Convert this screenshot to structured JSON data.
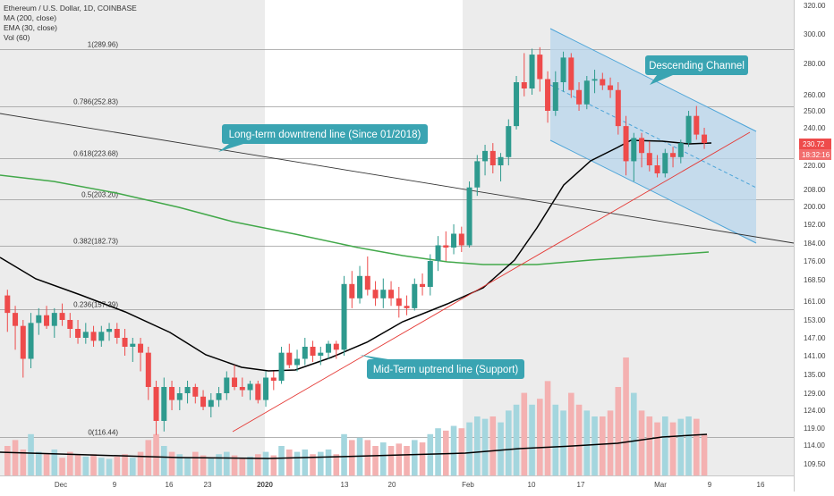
{
  "legend": {
    "symbol_line": "Ethereum / U.S. Dollar, 1D, COINBASE",
    "ma_line": "MA (200, close)",
    "ema_line": "EMA (30, close)",
    "vol_line": "Vol (60)"
  },
  "price_badge": {
    "price": "230.72",
    "countdown": "18:32:16"
  },
  "callouts": {
    "descending": "Descending Channel",
    "downtrend": "Long-term downtrend line (Since 01/2018)",
    "uptrend": "Mid-Term uptrend line (Support)"
  },
  "colors": {
    "up": "#2e9a8e",
    "down": "#ee4b4b",
    "vol_up": "#a4d6de",
    "vol_down": "#f4b1b1",
    "ma200": "#42a84a",
    "ema30": "#000000",
    "channel_fill": "#b8d5ec",
    "channel_line": "#4aa3d8",
    "callout_bg": "#3aa4b2",
    "badge": "#ee4b4b"
  },
  "chart_data": {
    "type": "candlestick",
    "x_ticks": [
      "Dec",
      "9",
      "16",
      "23",
      "2020",
      "13",
      "20",
      "Feb",
      "10",
      "17",
      "Mar",
      "9",
      "16"
    ],
    "y_ticks": [
      109.5,
      114,
      119,
      124,
      129,
      135,
      141,
      147,
      153,
      161,
      168.5,
      176,
      184,
      192,
      200,
      208,
      220,
      230,
      240,
      250,
      260,
      280,
      300,
      320
    ],
    "fib_levels": [
      {
        "label": "1(289.96)",
        "value": 289.96
      },
      {
        "label": "0.786(252.83)",
        "value": 252.83
      },
      {
        "label": "0.618(223.68)",
        "value": 223.68
      },
      {
        "label": "0.5(203.20)",
        "value": 203.2
      },
      {
        "label": "0.382(182.73)",
        "value": 182.73
      },
      {
        "label": "0.236(157.39)",
        "value": 157.39
      },
      {
        "label": "0(116.44)",
        "value": 116.44
      }
    ],
    "candles": [
      [
        163,
        165,
        149,
        156
      ],
      [
        156,
        159,
        143,
        151
      ],
      [
        151,
        153,
        134,
        140
      ],
      [
        140,
        156,
        137,
        152
      ],
      [
        152,
        158,
        148,
        155
      ],
      [
        155,
        159,
        150,
        151
      ],
      [
        151,
        158,
        147,
        156
      ],
      [
        156,
        160,
        151,
        153
      ],
      [
        153,
        156,
        147,
        150
      ],
      [
        150,
        153,
        145,
        147
      ],
      [
        147,
        152,
        145,
        149
      ],
      [
        149,
        151,
        144,
        146
      ],
      [
        146,
        151,
        144,
        149
      ],
      [
        149,
        152,
        146,
        150
      ],
      [
        150,
        152,
        145,
        147
      ],
      [
        147,
        150,
        141,
        144
      ],
      [
        144,
        147,
        139,
        145
      ],
      [
        145,
        147,
        136,
        142
      ],
      [
        142,
        144,
        127,
        131
      ],
      [
        131,
        133,
        117,
        121
      ],
      [
        121,
        134,
        118,
        131
      ],
      [
        131,
        133,
        124,
        127
      ],
      [
        127,
        131,
        124,
        129
      ],
      [
        129,
        133,
        126,
        131
      ],
      [
        131,
        132,
        126,
        128
      ],
      [
        128,
        130,
        124,
        125
      ],
      [
        125,
        129,
        122,
        127
      ],
      [
        127,
        131,
        125,
        129
      ],
      [
        129,
        136,
        127,
        134
      ],
      [
        134,
        138,
        130,
        131
      ],
      [
        131,
        134,
        128,
        130
      ],
      [
        130,
        133,
        127,
        132
      ],
      [
        132,
        133,
        126,
        127
      ],
      [
        127,
        136,
        125,
        134
      ],
      [
        134,
        136,
        130,
        133
      ],
      [
        133,
        144,
        132,
        142
      ],
      [
        142,
        145,
        137,
        138
      ],
      [
        138,
        143,
        136,
        140
      ],
      [
        140,
        147,
        138,
        144
      ],
      [
        144,
        146,
        139,
        141
      ],
      [
        141,
        144,
        138,
        142
      ],
      [
        142,
        146,
        140,
        145
      ],
      [
        145,
        146,
        140,
        143
      ],
      [
        143,
        170,
        141,
        167
      ],
      [
        167,
        172,
        158,
        162
      ],
      [
        162,
        174,
        160,
        170
      ],
      [
        170,
        178,
        163,
        165
      ],
      [
        165,
        168,
        159,
        162
      ],
      [
        162,
        169,
        158,
        165
      ],
      [
        165,
        168,
        159,
        162
      ],
      [
        162,
        166,
        154,
        159
      ],
      [
        159,
        163,
        155,
        158
      ],
      [
        158,
        169,
        157,
        167
      ],
      [
        167,
        171,
        163,
        166
      ],
      [
        166,
        179,
        163,
        176
      ],
      [
        176,
        187,
        172,
        183
      ],
      [
        183,
        189,
        176,
        182
      ],
      [
        182,
        192,
        179,
        188
      ],
      [
        188,
        191,
        180,
        183
      ],
      [
        183,
        212,
        182,
        209
      ],
      [
        209,
        225,
        205,
        222
      ],
      [
        222,
        230,
        215,
        227
      ],
      [
        227,
        231,
        216,
        220
      ],
      [
        220,
        226,
        212,
        224
      ],
      [
        224,
        245,
        220,
        241
      ],
      [
        241,
        272,
        239,
        268
      ],
      [
        268,
        287,
        259,
        264
      ],
      [
        264,
        290,
        260,
        286
      ],
      [
        286,
        291,
        262,
        270
      ],
      [
        270,
        275,
        243,
        250
      ],
      [
        250,
        275,
        247,
        268
      ],
      [
        268,
        288,
        262,
        284
      ],
      [
        284,
        287,
        258,
        263
      ],
      [
        263,
        268,
        250,
        254
      ],
      [
        254,
        272,
        251,
        269
      ],
      [
        269,
        276,
        261,
        270
      ],
      [
        270,
        274,
        263,
        266
      ],
      [
        266,
        271,
        258,
        263
      ],
      [
        263,
        268,
        236,
        241
      ],
      [
        241,
        247,
        215,
        222
      ],
      [
        222,
        237,
        212,
        234
      ],
      [
        234,
        237,
        219,
        226
      ],
      [
        226,
        232,
        217,
        220
      ],
      [
        220,
        225,
        214,
        216
      ],
      [
        216,
        228,
        214,
        226
      ],
      [
        226,
        229,
        219,
        224
      ],
      [
        224,
        233,
        221,
        231
      ],
      [
        231,
        250,
        229,
        247
      ],
      [
        247,
        253,
        233,
        236
      ],
      [
        236,
        240,
        228,
        231
      ]
    ],
    "volumes": [
      0.25,
      0.3,
      0.22,
      0.35,
      0.2,
      0.18,
      0.22,
      0.15,
      0.2,
      0.18,
      0.16,
      0.18,
      0.15,
      0.14,
      0.16,
      0.18,
      0.15,
      0.2,
      0.3,
      0.35,
      0.25,
      0.2,
      0.18,
      0.15,
      0.2,
      0.17,
      0.15,
      0.18,
      0.2,
      0.17,
      0.15,
      0.16,
      0.18,
      0.2,
      0.17,
      0.25,
      0.22,
      0.2,
      0.22,
      0.18,
      0.2,
      0.22,
      0.18,
      0.35,
      0.3,
      0.32,
      0.3,
      0.25,
      0.28,
      0.25,
      0.27,
      0.25,
      0.3,
      0.28,
      0.35,
      0.4,
      0.38,
      0.42,
      0.4,
      0.45,
      0.5,
      0.48,
      0.5,
      0.45,
      0.55,
      0.6,
      0.7,
      0.6,
      0.65,
      0.8,
      0.6,
      0.55,
      0.7,
      0.6,
      0.55,
      0.5,
      0.5,
      0.55,
      0.75,
      1.0,
      0.7,
      0.55,
      0.5,
      0.45,
      0.5,
      0.45,
      0.48,
      0.5,
      0.48,
      0.35
    ]
  }
}
